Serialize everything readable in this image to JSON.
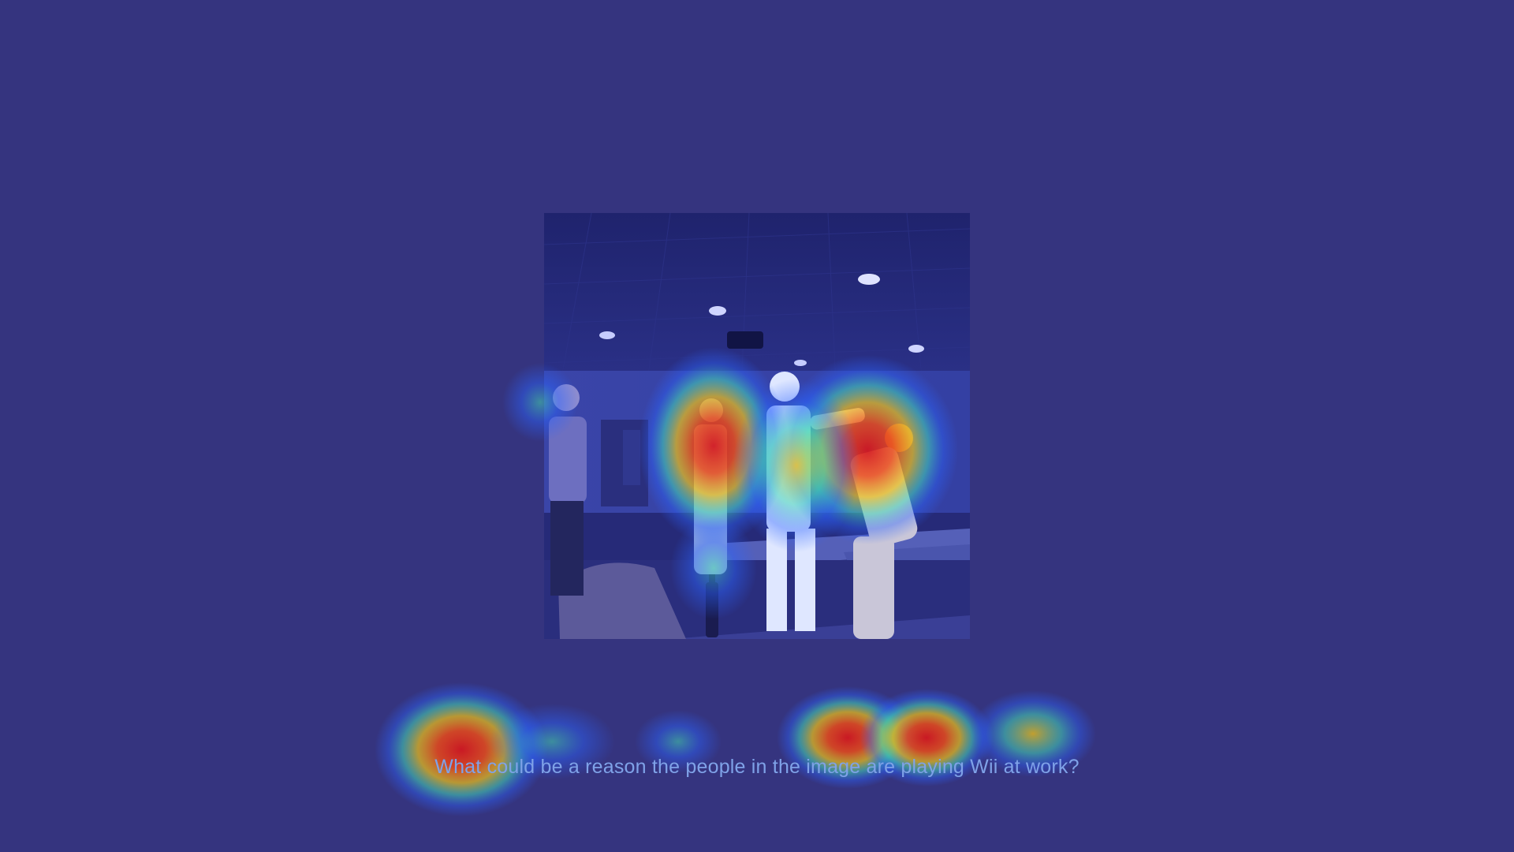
{
  "question": "What could be a reason the people in the image are playing Wii at work?",
  "colors": {
    "background": "#35347f",
    "question_text": "#7fa2e8",
    "heat_hot": "#d6161c",
    "heat_warm": "#f0c214",
    "heat_mid": "#43d7b8",
    "heat_cool": "#2b63ff"
  },
  "scene": {
    "subject": "office-wii-players",
    "figures": [
      "man-left-standing",
      "person-center-back",
      "man-center-playing",
      "man-right-bending"
    ]
  }
}
